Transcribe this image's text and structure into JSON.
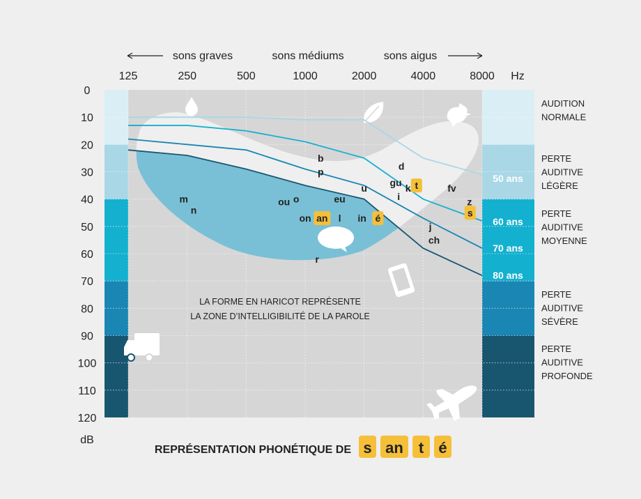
{
  "chart_data": {
    "type": "line",
    "title": "REPRÉSENTATION PHONÉTIQUE DE",
    "title_word": [
      "s",
      "an",
      "t",
      "é"
    ],
    "x_scale": "log2",
    "x_top_labels": {
      "low": "sons graves",
      "mid": "sons médiums",
      "high": "sons aigus"
    },
    "x_ticks": [
      125,
      250,
      500,
      1000,
      2000,
      4000,
      8000
    ],
    "x_unit": "Hz",
    "y_ticks": [
      0,
      10,
      20,
      30,
      40,
      50,
      60,
      70,
      80,
      90,
      100,
      110,
      120
    ],
    "y_unit": "dB",
    "ylim": [
      0,
      120
    ],
    "categories": [
      {
        "label": "AUDITION\nNORMALE",
        "from": 0,
        "to": 20,
        "color": "#daeef5"
      },
      {
        "label": "PERTE\nAUDITIVE\nLÉGÈRE",
        "from": 20,
        "to": 40,
        "color": "#a9d7e6"
      },
      {
        "label": "PERTE\nAUDITIVE\nMOYENNE",
        "from": 40,
        "to": 70,
        "color": "#14b0cf"
      },
      {
        "label": "PERTE\nAUDITIVE\nSÉVÈRE",
        "from": 70,
        "to": 90,
        "color": "#1a86b3"
      },
      {
        "label": "PERTE\nAUDITIVE\nPROFONDE",
        "from": 90,
        "to": 120,
        "color": "#185670"
      }
    ],
    "series": [
      {
        "name": "50 ans",
        "color": "#a9d7e6",
        "x": [
          125,
          250,
          500,
          1000,
          2000,
          4000,
          8000
        ],
        "values": [
          10,
          10,
          10,
          11,
          11,
          25,
          31
        ]
      },
      {
        "name": "60 ans",
        "color": "#14b0cf",
        "x": [
          125,
          250,
          500,
          1000,
          2000,
          4000,
          8000
        ],
        "values": [
          13,
          13,
          15,
          19,
          25,
          40,
          48
        ]
      },
      {
        "name": "70 ans",
        "color": "#1a86b3",
        "x": [
          125,
          250,
          500,
          1000,
          2000,
          4000,
          8000
        ],
        "values": [
          18,
          20,
          22,
          29,
          35,
          47,
          58
        ]
      },
      {
        "name": "80 ans",
        "color": "#185670",
        "x": [
          125,
          250,
          500,
          1000,
          2000,
          4000,
          8000
        ],
        "values": [
          22,
          24,
          29,
          35,
          40,
          58,
          68
        ]
      }
    ],
    "phonemes": [
      {
        "text": "b",
        "x": 1200,
        "y": 25,
        "highlight": false
      },
      {
        "text": "p",
        "x": 1200,
        "y": 30,
        "highlight": false
      },
      {
        "text": "d",
        "x": 3100,
        "y": 28,
        "highlight": false
      },
      {
        "text": "gu",
        "x": 2900,
        "y": 34,
        "highlight": false
      },
      {
        "text": "k",
        "x": 3350,
        "y": 36,
        "highlight": false
      },
      {
        "text": "t",
        "x": 3700,
        "y": 35,
        "highlight": true
      },
      {
        "text": "i",
        "x": 3000,
        "y": 39,
        "highlight": false
      },
      {
        "text": "u",
        "x": 2000,
        "y": 36,
        "highlight": false
      },
      {
        "text": "fv",
        "x": 5600,
        "y": 36,
        "highlight": false
      },
      {
        "text": "z",
        "x": 6900,
        "y": 41,
        "highlight": false
      },
      {
        "text": "s",
        "x": 6950,
        "y": 45,
        "highlight": true
      },
      {
        "text": "m",
        "x": 240,
        "y": 40,
        "highlight": false
      },
      {
        "text": "n",
        "x": 270,
        "y": 44,
        "highlight": false
      },
      {
        "text": "ou",
        "x": 780,
        "y": 41,
        "highlight": false
      },
      {
        "text": "o",
        "x": 900,
        "y": 40,
        "highlight": false
      },
      {
        "text": "eu",
        "x": 1500,
        "y": 40,
        "highlight": false
      },
      {
        "text": "on",
        "x": 1000,
        "y": 47,
        "highlight": false
      },
      {
        "text": "an",
        "x": 1220,
        "y": 47,
        "highlight": true
      },
      {
        "text": "l",
        "x": 1500,
        "y": 47,
        "highlight": false
      },
      {
        "text": "in",
        "x": 1950,
        "y": 47,
        "highlight": false
      },
      {
        "text": "é",
        "x": 2350,
        "y": 47,
        "highlight": true
      },
      {
        "text": "j",
        "x": 4350,
        "y": 50,
        "highlight": false
      },
      {
        "text": "ch",
        "x": 4550,
        "y": 55,
        "highlight": false
      },
      {
        "text": "r",
        "x": 1150,
        "y": 62,
        "highlight": false
      }
    ],
    "caption": [
      "LA FORME EN HARICOT REPRÉSENTE",
      "LA ZONE D’INTELLIGIBILITÉ DE LA PAROLE"
    ],
    "icons": [
      "water-drop",
      "leaf",
      "bird",
      "speech-bubble",
      "smartphone",
      "truck",
      "airplane"
    ],
    "colors": {
      "highlight": "#f5bf3a",
      "plot_bg": "#d6d6d6",
      "bean": "#79c0d6",
      "page_bg": "#efefef"
    }
  }
}
